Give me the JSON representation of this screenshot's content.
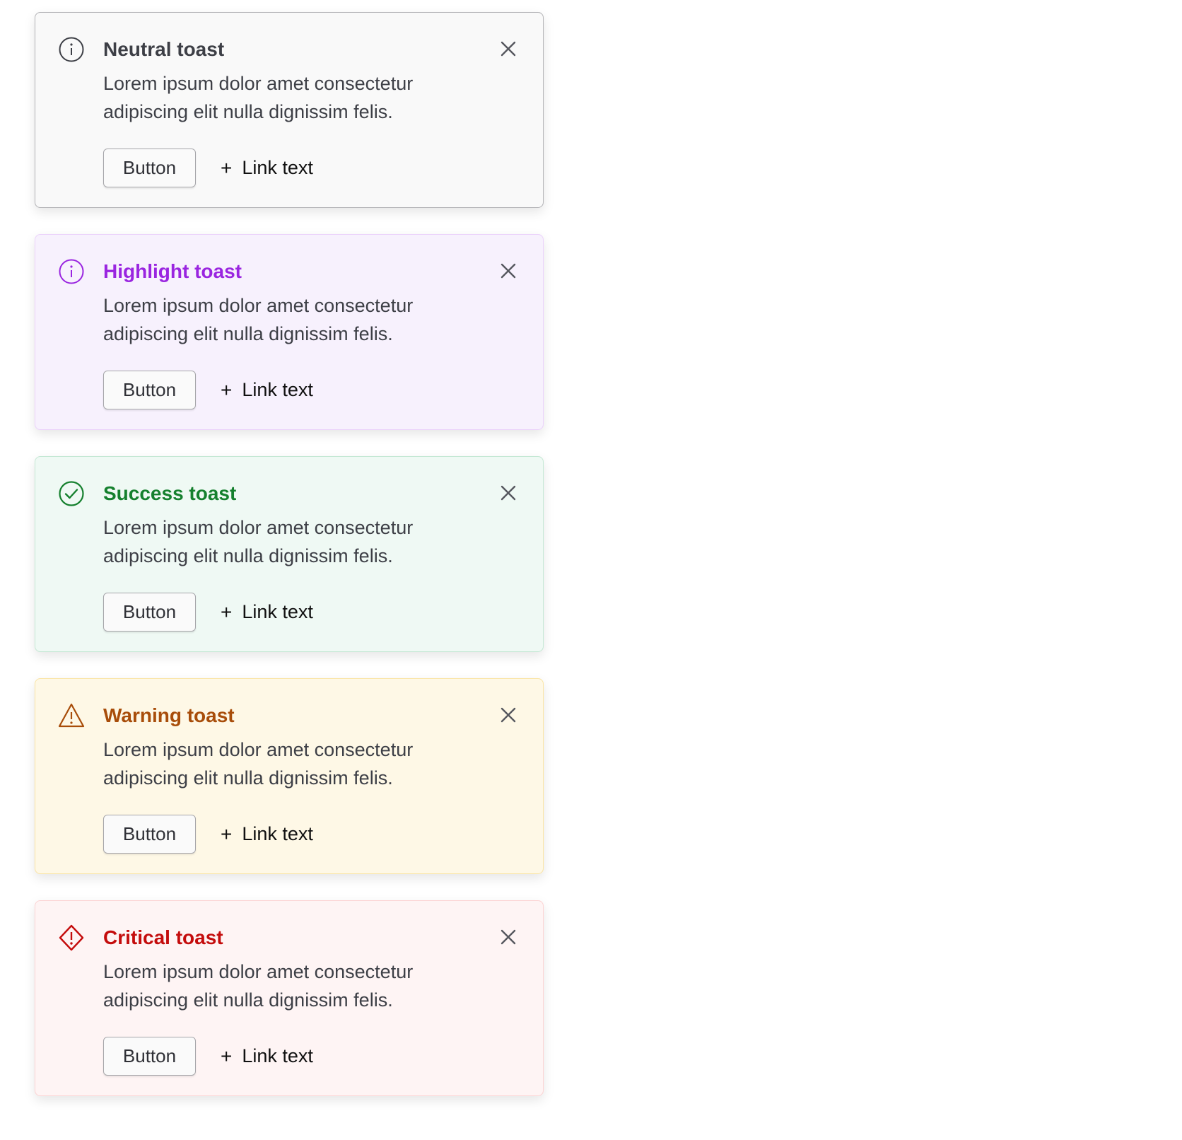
{
  "toasts": [
    {
      "title": "Neutral toast",
      "body": "Lorem ipsum dolor amet consectetur adipiscing elit nulla dignissim felis.",
      "button": "Button",
      "link": "Link text",
      "icon": "info-icon",
      "accent": "#3d3f46",
      "background": "#f9f9f9",
      "border": "#b3b3b6"
    },
    {
      "title": "Highlight toast",
      "body": "Lorem ipsum dolor amet consectetur adipiscing elit nulla dignissim felis.",
      "button": "Button",
      "link": "Link text",
      "icon": "info-icon",
      "accent": "#9a25e0",
      "background": "#f7f1fd",
      "border": "#ebd2fb"
    },
    {
      "title": "Success toast",
      "body": "Lorem ipsum dolor amet consectetur adipiscing elit nulla dignissim felis.",
      "button": "Button",
      "link": "Link text",
      "icon": "check-circle-icon",
      "accent": "#15802e",
      "background": "#eff9f4",
      "border": "#c4e8d4"
    },
    {
      "title": "Warning toast",
      "body": "Lorem ipsum dolor amet consectetur adipiscing elit nulla dignissim felis.",
      "button": "Button",
      "link": "Link text",
      "icon": "warning-triangle-icon",
      "accent": "#a84d0a",
      "background": "#fef8e6",
      "border": "#fae4a4"
    },
    {
      "title": "Critical toast",
      "body": "Lorem ipsum dolor amet consectetur adipiscing elit nulla dignissim felis.",
      "button": "Button",
      "link": "Link text",
      "icon": "critical-diamond-icon",
      "accent": "#c40c0c",
      "background": "#fef4f4",
      "border": "#fcd3d3"
    }
  ]
}
